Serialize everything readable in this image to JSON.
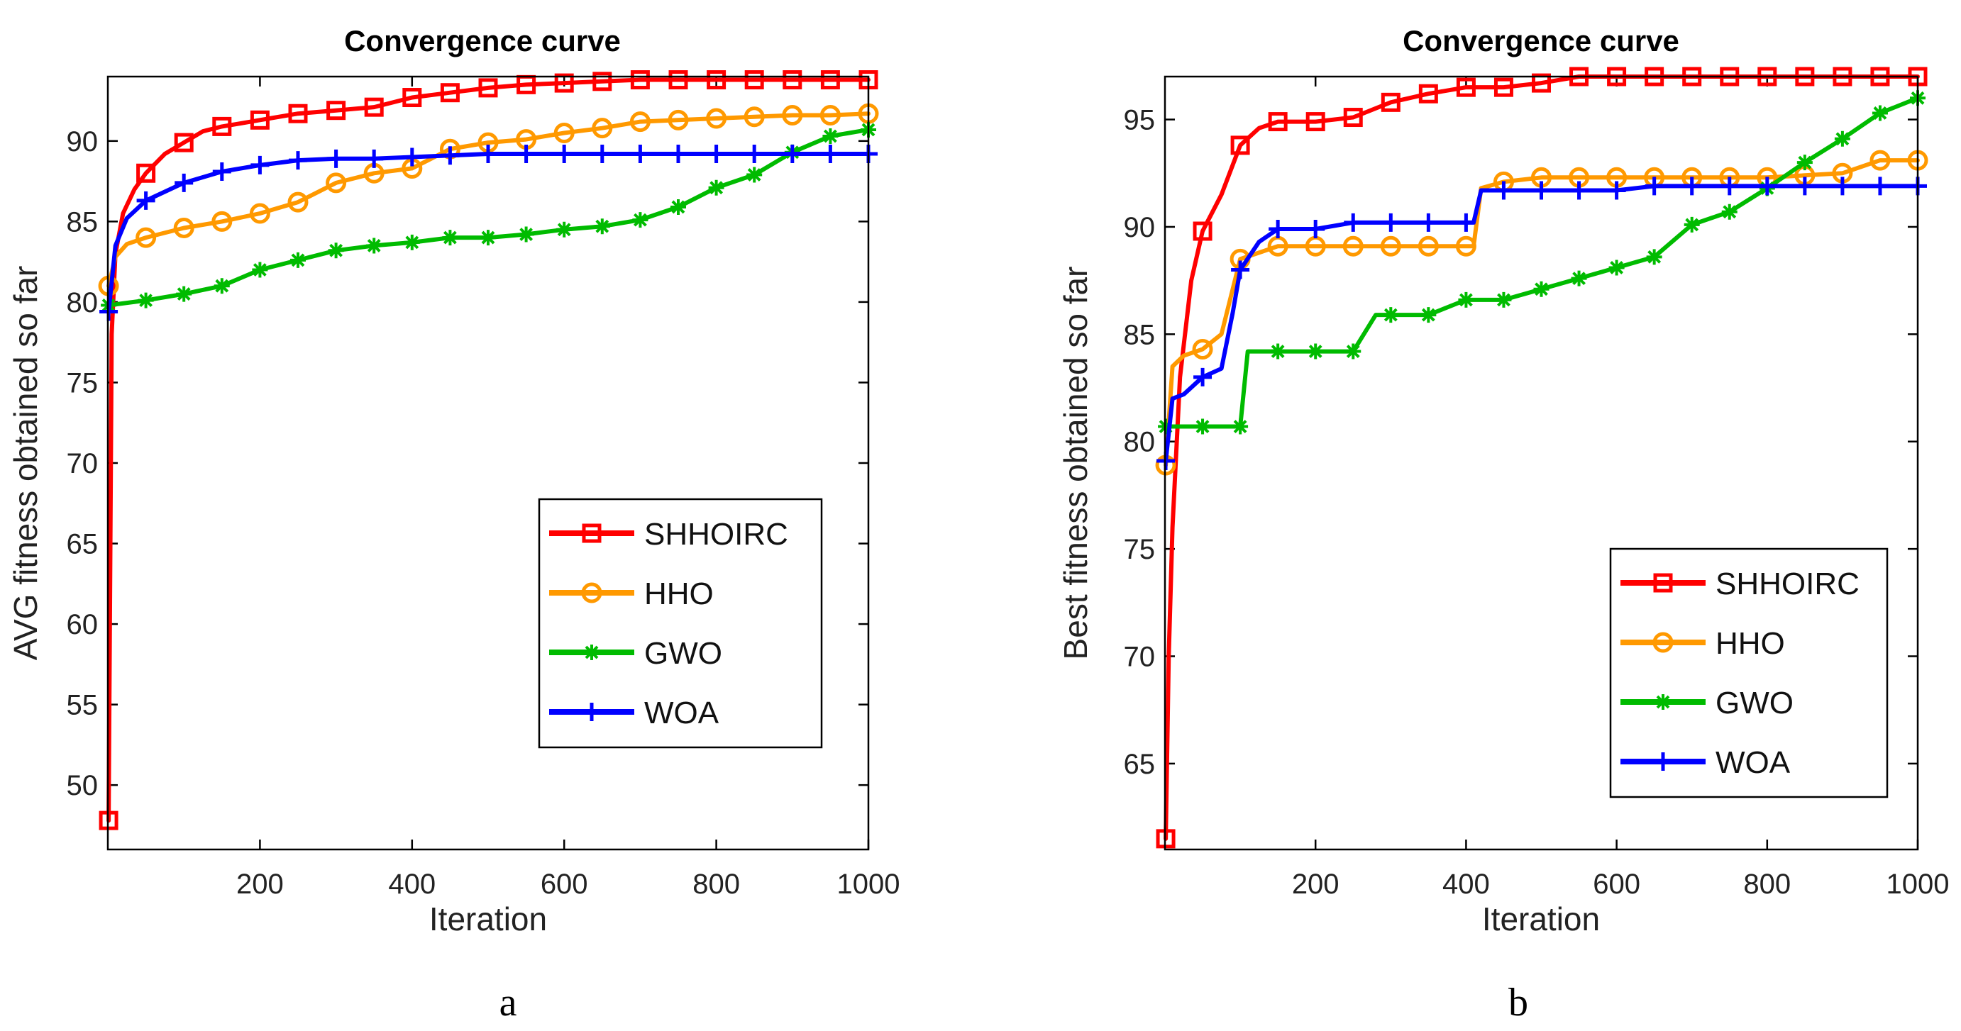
{
  "chart_data": [
    {
      "type": "line",
      "panel_label": "a",
      "title": "Convergence curve",
      "xlabel": "Iteration",
      "ylabel": "AVG fitness obtained so far",
      "xlim": [
        0,
        1000
      ],
      "ylim": [
        46,
        94
      ],
      "xticks": [
        200,
        400,
        600,
        800,
        1000
      ],
      "yticks": [
        50,
        55,
        60,
        65,
        70,
        75,
        80,
        85,
        90
      ],
      "grid": false,
      "legend_position": "bottom-right",
      "series": [
        {
          "name": "SHHOIRC",
          "color": "#ff0000",
          "marker": "square",
          "x": [
            1,
            5,
            10,
            20,
            35,
            50,
            75,
            100,
            125,
            150,
            175,
            200,
            250,
            300,
            350,
            400,
            450,
            500,
            550,
            600,
            650,
            700,
            750,
            800,
            850,
            900,
            950,
            1000
          ],
          "y": [
            47.8,
            78,
            83,
            85.5,
            87,
            88,
            89.2,
            89.9,
            90.6,
            90.9,
            91.1,
            91.3,
            91.7,
            91.9,
            92.1,
            92.7,
            93.0,
            93.3,
            93.5,
            93.6,
            93.7,
            93.8,
            93.8,
            93.8,
            93.8,
            93.8,
            93.8,
            93.8
          ]
        },
        {
          "name": "HHO",
          "color": "#ff9900",
          "marker": "circle",
          "x": [
            1,
            10,
            25,
            50,
            100,
            150,
            200,
            250,
            300,
            350,
            400,
            450,
            500,
            550,
            600,
            650,
            700,
            750,
            800,
            850,
            900,
            950,
            1000
          ],
          "y": [
            81,
            82.8,
            83.6,
            84.0,
            84.6,
            85.0,
            85.5,
            86.2,
            87.4,
            88.0,
            88.3,
            89.5,
            89.9,
            90.1,
            90.5,
            90.8,
            91.2,
            91.3,
            91.4,
            91.5,
            91.6,
            91.6,
            91.7
          ]
        },
        {
          "name": "GWO",
          "color": "#00bb00",
          "marker": "star",
          "x": [
            1,
            50,
            100,
            150,
            200,
            250,
            300,
            350,
            400,
            450,
            500,
            550,
            600,
            650,
            700,
            750,
            800,
            850,
            900,
            950,
            1000
          ],
          "y": [
            79.8,
            80.1,
            80.5,
            81.0,
            82.0,
            82.6,
            83.2,
            83.5,
            83.7,
            84.0,
            84.0,
            84.2,
            84.5,
            84.7,
            85.1,
            85.9,
            87.1,
            87.9,
            89.3,
            90.3,
            90.7
          ]
        },
        {
          "name": "WOA",
          "color": "#0000ff",
          "marker": "plus",
          "x": [
            1,
            10,
            25,
            50,
            100,
            150,
            200,
            250,
            300,
            350,
            400,
            450,
            500,
            550,
            600,
            650,
            700,
            750,
            800,
            850,
            900,
            950,
            1000
          ],
          "y": [
            79.4,
            83.5,
            85.2,
            86.3,
            87.4,
            88.1,
            88.5,
            88.8,
            88.9,
            88.9,
            89.0,
            89.1,
            89.2,
            89.2,
            89.2,
            89.2,
            89.2,
            89.2,
            89.2,
            89.2,
            89.2,
            89.2,
            89.2
          ]
        }
      ]
    },
    {
      "type": "line",
      "panel_label": "b",
      "title": "Convergence curve",
      "xlabel": "Iteration",
      "ylabel": "Best fitness obtained so far",
      "xlim": [
        0,
        1000
      ],
      "ylim": [
        61,
        97
      ],
      "xticks": [
        200,
        400,
        600,
        800,
        1000
      ],
      "yticks": [
        65,
        70,
        75,
        80,
        85,
        90,
        95
      ],
      "grid": false,
      "legend_position": "bottom-right",
      "series": [
        {
          "name": "SHHOIRC",
          "color": "#ff0000",
          "marker": "square",
          "x": [
            1,
            5,
            10,
            20,
            35,
            50,
            75,
            100,
            125,
            150,
            200,
            250,
            300,
            350,
            400,
            450,
            500,
            550,
            600,
            650,
            700,
            750,
            800,
            850,
            900,
            950,
            1000
          ],
          "y": [
            61.5,
            70,
            76,
            83,
            87.5,
            89.8,
            91.5,
            93.8,
            94.6,
            94.9,
            94.9,
            95.1,
            95.8,
            96.2,
            96.5,
            96.5,
            96.7,
            97.0,
            97.0,
            97.0,
            97.0,
            97.0,
            97.0,
            97.0,
            97.0,
            97.0,
            97.0
          ]
        },
        {
          "name": "HHO",
          "color": "#ff9900",
          "marker": "circle",
          "x": [
            1,
            10,
            25,
            50,
            75,
            100,
            150,
            200,
            250,
            300,
            350,
            400,
            410,
            420,
            450,
            500,
            550,
            600,
            650,
            700,
            750,
            800,
            850,
            900,
            950,
            1000
          ],
          "y": [
            78.9,
            83.5,
            84.0,
            84.3,
            85.0,
            88.5,
            89.1,
            89.1,
            89.1,
            89.1,
            89.1,
            89.1,
            89.1,
            91.8,
            92.1,
            92.3,
            92.3,
            92.3,
            92.3,
            92.3,
            92.3,
            92.3,
            92.4,
            92.5,
            93.1,
            93.1
          ]
        },
        {
          "name": "GWO",
          "color": "#00bb00",
          "marker": "star",
          "x": [
            1,
            50,
            100,
            110,
            150,
            200,
            250,
            280,
            300,
            350,
            400,
            450,
            500,
            550,
            600,
            650,
            700,
            750,
            800,
            850,
            900,
            950,
            1000
          ],
          "y": [
            80.7,
            80.7,
            80.7,
            84.2,
            84.2,
            84.2,
            84.2,
            85.9,
            85.9,
            85.9,
            86.6,
            86.6,
            87.1,
            87.6,
            88.1,
            88.6,
            90.1,
            90.7,
            91.8,
            93.0,
            94.1,
            95.3,
            96.0
          ]
        },
        {
          "name": "WOA",
          "color": "#0000ff",
          "marker": "plus",
          "x": [
            1,
            10,
            25,
            50,
            75,
            90,
            100,
            125,
            150,
            200,
            250,
            300,
            350,
            400,
            410,
            420,
            450,
            500,
            550,
            600,
            650,
            700,
            750,
            800,
            850,
            900,
            950,
            1000
          ],
          "y": [
            79.1,
            82.0,
            82.2,
            83.0,
            83.4,
            86.0,
            88.0,
            89.3,
            89.9,
            89.9,
            90.2,
            90.2,
            90.2,
            90.2,
            90.2,
            91.7,
            91.7,
            91.7,
            91.7,
            91.7,
            91.9,
            91.9,
            91.9,
            91.9,
            91.9,
            91.9,
            91.9,
            91.9
          ]
        }
      ]
    }
  ]
}
